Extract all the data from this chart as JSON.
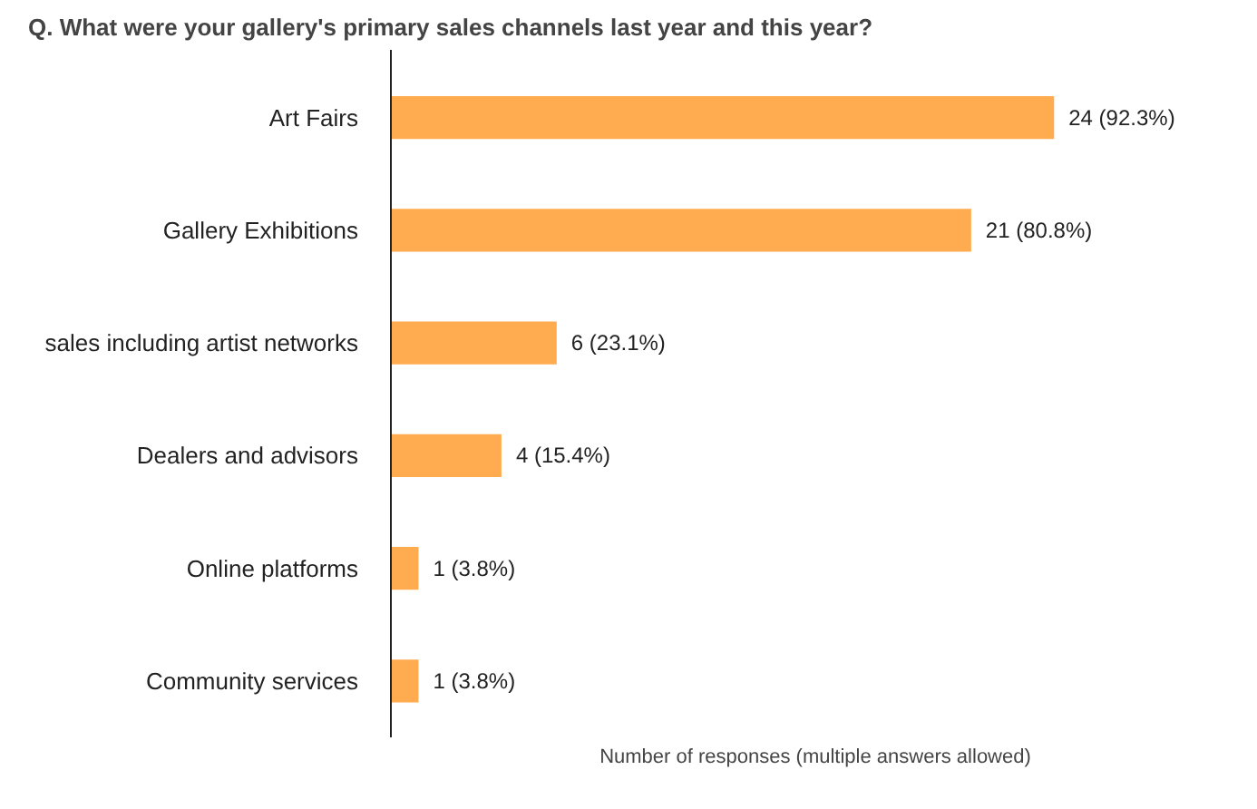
{
  "chart_data": {
    "type": "bar",
    "orientation": "horizontal",
    "title": "Q. What were your gallery's primary sales channels last year and this year?",
    "categories": [
      "Art Fairs",
      "Gallery Exhibitions",
      "sales including artist networks",
      "Dealers and advisors",
      "Online platforms",
      "Community services"
    ],
    "values": [
      24,
      21,
      6,
      4,
      1,
      1
    ],
    "value_labels": [
      "24 (92.3%)",
      "21 (80.8%)",
      "6 (23.1%)",
      "4 (15.4%)",
      "1 (3.8%)",
      "1 (3.8%)"
    ],
    "color": "#ffab4f",
    "xlabel": "Number of responses (multiple answers allowed)",
    "grid": false
  }
}
